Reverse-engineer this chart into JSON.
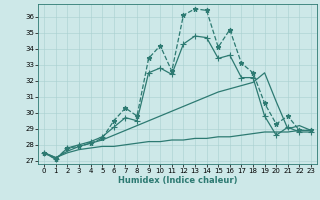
{
  "xlabel": "Humidex (Indice chaleur)",
  "xlim": [
    -0.5,
    23.5
  ],
  "ylim": [
    26.8,
    36.8
  ],
  "yticks": [
    27,
    28,
    29,
    30,
    31,
    32,
    33,
    34,
    35,
    36
  ],
  "xticks": [
    0,
    1,
    2,
    3,
    4,
    5,
    6,
    7,
    8,
    9,
    10,
    11,
    12,
    13,
    14,
    15,
    16,
    17,
    18,
    19,
    20,
    21,
    22,
    23
  ],
  "bg_color": "#cde8e8",
  "line_color": "#2d7a72",
  "series": [
    {
      "x": [
        0,
        1,
        2,
        3,
        4,
        5,
        6,
        7,
        8,
        9,
        10,
        11,
        12,
        13,
        14,
        15,
        16,
        17,
        18,
        19,
        20,
        21,
        22,
        23
      ],
      "y": [
        27.5,
        27.1,
        27.8,
        27.9,
        28.1,
        28.4,
        29.5,
        30.3,
        29.8,
        33.4,
        34.2,
        32.6,
        36.1,
        36.5,
        36.4,
        34.1,
        35.2,
        33.1,
        32.5,
        30.6,
        29.3,
        29.8,
        28.9,
        28.9
      ],
      "marker": "*",
      "linestyle": "--",
      "linewidth": 0.9,
      "markersize": 3.5
    },
    {
      "x": [
        0,
        1,
        2,
        3,
        4,
        5,
        6,
        7,
        8,
        9,
        10,
        11,
        12,
        13,
        14,
        15,
        16,
        17,
        18,
        19,
        20,
        21,
        22,
        23
      ],
      "y": [
        27.5,
        27.1,
        27.8,
        28.0,
        28.2,
        28.5,
        29.1,
        29.7,
        29.5,
        32.5,
        32.8,
        32.4,
        34.3,
        34.8,
        34.7,
        33.4,
        33.6,
        32.2,
        32.2,
        29.8,
        28.6,
        29.1,
        28.8,
        28.8
      ],
      "marker": "+",
      "linestyle": "-",
      "linewidth": 0.9,
      "markersize": 4
    },
    {
      "x": [
        0,
        1,
        2,
        3,
        4,
        5,
        6,
        7,
        8,
        9,
        10,
        11,
        12,
        13,
        14,
        15,
        16,
        17,
        18,
        19,
        20,
        21,
        22,
        23
      ],
      "y": [
        27.5,
        27.2,
        27.6,
        27.9,
        28.1,
        28.3,
        28.6,
        28.9,
        29.2,
        29.5,
        29.8,
        30.1,
        30.4,
        30.7,
        31.0,
        31.3,
        31.5,
        31.7,
        31.9,
        32.5,
        30.7,
        29.0,
        29.2,
        28.9
      ],
      "marker": null,
      "linestyle": "-",
      "linewidth": 0.9,
      "markersize": 0
    },
    {
      "x": [
        0,
        1,
        2,
        3,
        4,
        5,
        6,
        7,
        8,
        9,
        10,
        11,
        12,
        13,
        14,
        15,
        16,
        17,
        18,
        19,
        20,
        21,
        22,
        23
      ],
      "y": [
        27.5,
        27.2,
        27.5,
        27.7,
        27.8,
        27.9,
        27.9,
        28.0,
        28.1,
        28.2,
        28.2,
        28.3,
        28.3,
        28.4,
        28.4,
        28.5,
        28.5,
        28.6,
        28.7,
        28.8,
        28.8,
        28.8,
        28.9,
        28.9
      ],
      "marker": null,
      "linestyle": "-",
      "linewidth": 0.9,
      "markersize": 0
    }
  ]
}
